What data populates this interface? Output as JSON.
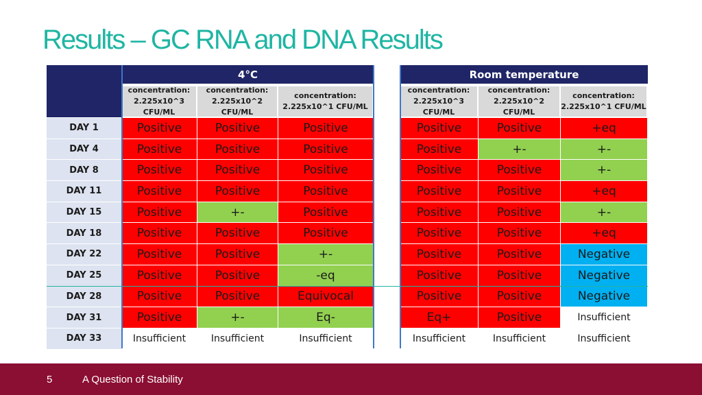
{
  "slide": {
    "title": "Results – GC RNA and DNA Results",
    "page_number": "5",
    "footer_text": "A Question of Stability"
  },
  "groups": [
    {
      "label": "4°C",
      "columns": [
        {
          "line1": "concentration:",
          "line2": "2.225x10^3 CFU/ML"
        },
        {
          "line1": "concentration:",
          "line2": "2.225x10^2 CFU/ML"
        },
        {
          "line1": "concentration:",
          "line2": "2.225x10^1 CFU/ML"
        }
      ]
    },
    {
      "label": "Room temperature",
      "columns": [
        {
          "line1": "concentration:",
          "line2": "2.225x10^3 CFU/ML"
        },
        {
          "line1": "concentration:",
          "line2": "2.225x10^2 CFU/ML"
        },
        {
          "line1": "concentration:",
          "line2": "2.225x10^1 CFU/ML"
        }
      ]
    }
  ],
  "legend_colors": {
    "positive": "#ff0000",
    "ambiguous": "#92d050",
    "negative": "#00b0f0",
    "insufficient": "#ffffff"
  },
  "rows": [
    {
      "day": "DAY 1",
      "cold": [
        "Positive",
        "Positive",
        "Positive"
      ],
      "room": [
        "Positive",
        "Positive",
        "+eq"
      ],
      "cold_status": [
        "pos",
        "pos",
        "pos"
      ],
      "room_status": [
        "pos",
        "pos",
        "pos"
      ]
    },
    {
      "day": "DAY 4",
      "cold": [
        "Positive",
        "Positive",
        "Positive"
      ],
      "room": [
        "Positive",
        "+-",
        "+-"
      ],
      "cold_status": [
        "pos",
        "pos",
        "pos"
      ],
      "room_status": [
        "pos",
        "amb",
        "amb"
      ]
    },
    {
      "day": "DAY 8",
      "cold": [
        "Positive",
        "Positive",
        "Positive"
      ],
      "room": [
        "Positive",
        "Positive",
        "+-"
      ],
      "cold_status": [
        "pos",
        "pos",
        "pos"
      ],
      "room_status": [
        "pos",
        "pos",
        "amb"
      ]
    },
    {
      "day": "DAY 11",
      "cold": [
        "Positive",
        "Positive",
        "Positive"
      ],
      "room": [
        "Positive",
        "Positive",
        "+eq"
      ],
      "cold_status": [
        "pos",
        "pos",
        "pos"
      ],
      "room_status": [
        "pos",
        "pos",
        "pos"
      ]
    },
    {
      "day": "DAY 15",
      "cold": [
        "Positive",
        "+-",
        "Positive"
      ],
      "room": [
        "Positive",
        "Positive",
        "+-"
      ],
      "cold_status": [
        "pos",
        "amb",
        "pos"
      ],
      "room_status": [
        "pos",
        "pos",
        "amb"
      ]
    },
    {
      "day": "DAY 18",
      "cold": [
        "Positive",
        "Positive",
        "Positive"
      ],
      "room": [
        "Positive",
        "Positive",
        "+eq"
      ],
      "cold_status": [
        "pos",
        "pos",
        "pos"
      ],
      "room_status": [
        "pos",
        "pos",
        "pos"
      ]
    },
    {
      "day": "DAY 22",
      "cold": [
        "Positive",
        "Positive",
        "+-"
      ],
      "room": [
        "Positive",
        "Positive",
        "Negative"
      ],
      "cold_status": [
        "pos",
        "pos",
        "amb"
      ],
      "room_status": [
        "pos",
        "pos",
        "neg"
      ]
    },
    {
      "day": "DAY 25",
      "cold": [
        "Positive",
        "Positive",
        "-eq"
      ],
      "room": [
        "Positive",
        "Positive",
        "Negative"
      ],
      "cold_status": [
        "pos",
        "pos",
        "amb"
      ],
      "room_status": [
        "pos",
        "pos",
        "neg"
      ]
    },
    {
      "day": "DAY 28",
      "cold": [
        "Positive",
        "Positive",
        "Equivocal"
      ],
      "room": [
        "Positive",
        "Positive",
        "Negative"
      ],
      "cold_status": [
        "pos",
        "pos",
        "pos"
      ],
      "room_status": [
        "pos",
        "pos",
        "neg"
      ]
    },
    {
      "day": "DAY 31",
      "cold": [
        "Positive",
        "+-",
        "Eq-"
      ],
      "room": [
        "Eq+",
        "Positive",
        "Insufficient"
      ],
      "cold_status": [
        "pos",
        "amb",
        "amb"
      ],
      "room_status": [
        "pos",
        "pos",
        "ins"
      ]
    },
    {
      "day": "DAY 33",
      "cold": [
        "Insufficient",
        "Insufficient",
        "Insufficient"
      ],
      "room": [
        "Insufficient",
        "Insufficient",
        "Insufficient"
      ],
      "cold_status": [
        "ins",
        "ins",
        "ins"
      ],
      "room_status": [
        "ins",
        "ins",
        "ins"
      ]
    }
  ]
}
